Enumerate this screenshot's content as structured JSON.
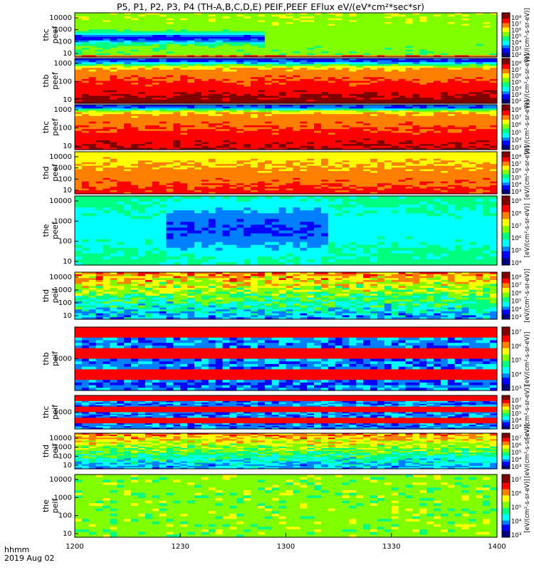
{
  "title": "P5, P1, P2, P3, P4 (TH-A,B,C,D,E) PEIF,PEEF EFlux eV/(eV*cm²*sec*sr)",
  "time_axis": {
    "ticks": [
      "1200",
      "1230",
      "1300",
      "1330",
      "1400"
    ],
    "range_minutes": [
      0,
      120
    ],
    "ann1": "hhmm",
    "ann2": "2019 Aug 02"
  },
  "colorbar_label": "[eV/(cm²-s-sr-eV)]",
  "colormap": [
    "#000080",
    "#0000ff",
    "#0080ff",
    "#00ffff",
    "#00ff80",
    "#80ff00",
    "#ffff00",
    "#ff8000",
    "#ff0000",
    "#800000"
  ],
  "panels": [
    {
      "ylabel": "thc\npeef",
      "yticks": [
        "10000",
        "1000",
        "100",
        "10"
      ],
      "cbar": [
        "10⁸",
        "10⁷",
        "10⁶",
        "10⁵",
        "10⁴",
        "10³",
        "10²"
      ]
    },
    {
      "ylabel": "thb\npeef",
      "yticks": [
        "1000",
        "100",
        "10"
      ],
      "cbar": [
        "10⁸",
        "10⁷",
        "10⁶",
        "10⁵",
        "10⁴",
        "10³",
        "10²"
      ]
    },
    {
      "ylabel": "thc\npeef",
      "yticks": [
        "1000",
        "100",
        "10"
      ],
      "cbar": [
        "10⁸",
        "10⁷",
        "10⁶",
        "10⁵",
        "10⁴",
        "10³"
      ]
    },
    {
      "ylabel": "thd\npeef",
      "yticks": [
        "10000",
        "1000",
        "100",
        "10"
      ],
      "cbar": [
        "10⁸",
        "10⁷",
        "10⁶",
        "10⁵",
        "10⁴",
        "10³"
      ]
    },
    {
      "ylabel": "the\npeef",
      "yticks": [
        "10000",
        "1000",
        "100",
        "10"
      ],
      "cbar": [
        "10⁹",
        "10⁸",
        "10⁷",
        "10⁶",
        "10⁵",
        "10⁴"
      ]
    },
    {
      "ylabel": "thd\npeif",
      "yticks": [
        "10000",
        "1000",
        "100",
        "10"
      ],
      "cbar": [
        "10⁸",
        "10⁷",
        "10⁶",
        "10⁵",
        "10⁴",
        "10³"
      ]
    },
    {
      "ylabel": "thb\npeif",
      "yticks": [
        "1000"
      ],
      "cbar": [
        "10⁷",
        "10⁶",
        "10⁵",
        "10⁴",
        "10³"
      ]
    },
    {
      "ylabel": "thc\npeif",
      "yticks": [
        "1000"
      ],
      "cbar": [
        "10⁷",
        "10⁶",
        "10⁵",
        "10⁴",
        "10³"
      ]
    },
    {
      "ylabel": "thd\npeif",
      "yticks": [
        "10000",
        "1000",
        "100",
        "10"
      ],
      "cbar": [
        "10⁷",
        "10⁶",
        "10⁵",
        "10⁴",
        "10³"
      ]
    },
    {
      "ylabel": "the\npeif",
      "yticks": [
        "10000",
        "1000",
        "100",
        "10"
      ],
      "cbar": [
        "10⁷",
        "10⁶",
        "10⁵",
        "10⁴",
        "10³"
      ]
    }
  ]
}
